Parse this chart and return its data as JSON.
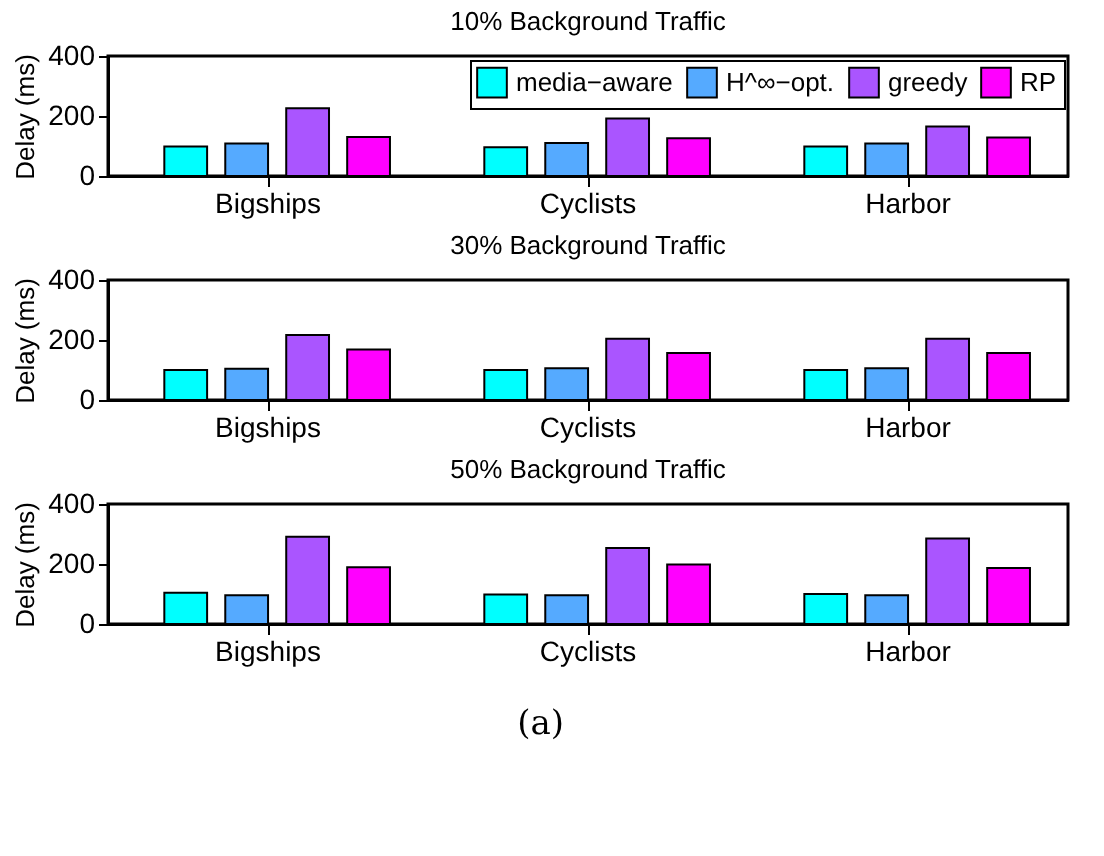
{
  "chart_data": [
    {
      "type": "bar",
      "title": "10% Background Traffic",
      "ylabel": "Delay (ms)",
      "categories": [
        "Bigships",
        "Cyclists",
        "Harbor"
      ],
      "ylim": [
        0,
        400
      ],
      "yticks": [
        0,
        200,
        400
      ],
      "grid": false,
      "legend": "top right",
      "series": [
        {
          "name": "media−aware",
          "color": "#00ffff",
          "values": [
            98,
            96,
            98
          ]
        },
        {
          "name": "H^∞−opt.",
          "color": "#55aaff",
          "values": [
            108,
            110,
            108
          ]
        },
        {
          "name": "greedy",
          "color": "#aa55ff",
          "values": [
            226,
            192,
            165
          ]
        },
        {
          "name": "RP",
          "color": "#ff00ff",
          "values": [
            130,
            126,
            128
          ]
        }
      ]
    },
    {
      "type": "bar",
      "title": "30% Background Traffic",
      "ylabel": "Delay (ms)",
      "categories": [
        "Bigships",
        "Cyclists",
        "Harbor"
      ],
      "ylim": [
        0,
        400
      ],
      "yticks": [
        0,
        200,
        400
      ],
      "grid": false,
      "legend": false,
      "series": [
        {
          "color": "#00ffff",
          "values": [
            100,
            100,
            100
          ]
        },
        {
          "color": "#55aaff",
          "values": [
            104,
            106,
            106
          ]
        },
        {
          "color": "#aa55ff",
          "values": [
            217,
            204,
            204
          ]
        },
        {
          "color": "#ff00ff",
          "values": [
            168,
            157,
            157
          ]
        }
      ]
    },
    {
      "type": "bar",
      "title": "50% Background Traffic",
      "ylabel": "Delay (ms)",
      "categories": [
        "Bigships",
        "Cyclists",
        "Harbor"
      ],
      "ylim": [
        0,
        400
      ],
      "yticks": [
        0,
        200,
        400
      ],
      "grid": false,
      "legend": false,
      "annotations": [
        "(a)"
      ],
      "series": [
        {
          "color": "#00ffff",
          "values": [
            104,
            98,
            100
          ]
        },
        {
          "color": "#55aaff",
          "values": [
            96,
            96,
            96
          ]
        },
        {
          "color": "#aa55ff",
          "values": [
            291,
            253,
            285
          ]
        },
        {
          "color": "#ff00ff",
          "values": [
            189,
            198,
            187
          ]
        }
      ]
    }
  ]
}
